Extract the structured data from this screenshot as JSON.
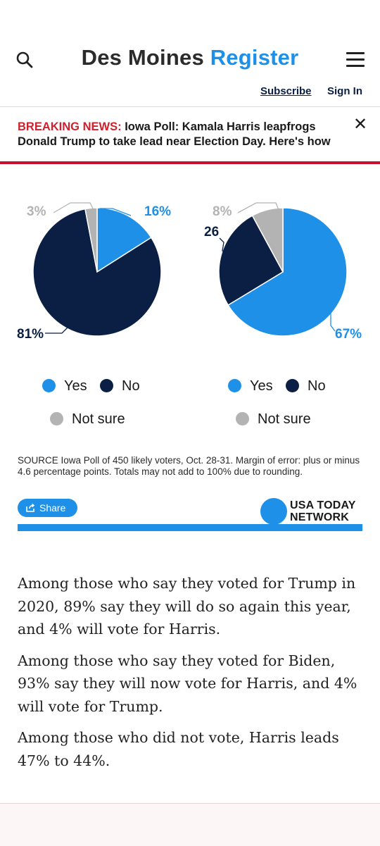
{
  "header": {
    "logo_part1": "Des Moines",
    "logo_part2": "Register",
    "subscribe": "Subscribe",
    "signin": "Sign In"
  },
  "breaking": {
    "tag": "BREAKING NEWS:",
    "headline": "Iowa Poll: Kamala Harris leapfrogs Donald Trump to take lead near Election Day. Here's how"
  },
  "chart_data": [
    {
      "type": "pie",
      "slices": [
        {
          "label": "Yes",
          "value": 16,
          "display": "16%",
          "color": "#1e90e8"
        },
        {
          "label": "No",
          "value": 81,
          "display": "81%",
          "color": "#0b1f44"
        },
        {
          "label": "Not sure",
          "value": 3,
          "display": "3%",
          "color": "#b3b3b3"
        }
      ],
      "legend": [
        "Yes",
        "No",
        "Not sure"
      ]
    },
    {
      "type": "pie",
      "slices": [
        {
          "label": "Yes",
          "value": 67,
          "display": "67%",
          "color": "#1e90e8"
        },
        {
          "label": "No",
          "value": 26,
          "display": "26",
          "color": "#0b1f44"
        },
        {
          "label": "Not sure",
          "value": 8,
          "display": "8%",
          "color": "#b3b3b3"
        }
      ],
      "legend": [
        "Yes",
        "No",
        "Not sure"
      ]
    }
  ],
  "source": "SOURCE Iowa Poll of 450 likely voters, Oct. 28-31. Margin of error: plus or minus 4.6 percentage points. Totals may not add to 100% due to rounding.",
  "share_label": "Share",
  "network": {
    "line1": "USA TODAY",
    "line2": "NETWORK"
  },
  "article": [
    "Among those who say they voted for Trump in 2020, 89% say they will do so again this year, and 4% will vote for Harris.",
    "Among those who say they voted for Biden, 93% say they will now vote for Harris, and 4% will vote for Trump.",
    "Among those who did not vote, Harris leads 47% to 44%."
  ],
  "colors": {
    "accent": "#1e90e8",
    "navy": "#0b1f44",
    "gray": "#b3b3b3",
    "breaking_red": "#c8102e"
  },
  "icons": [
    "search-icon",
    "hamburger-menu-icon",
    "close-icon",
    "share-icon"
  ]
}
